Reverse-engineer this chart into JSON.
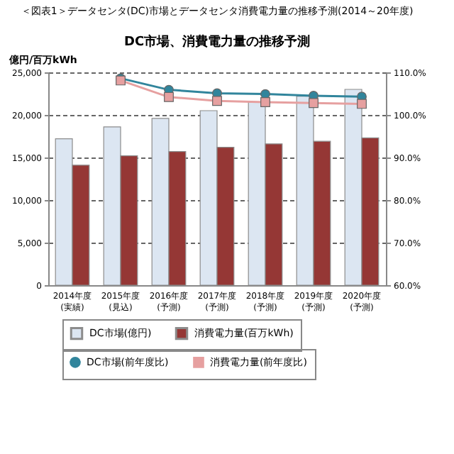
{
  "chart_data": {
    "type": "bar",
    "title": "＜図表1＞データセンタ(DC)市場とデータセンタ消費電力量の推移予測(2014～20年度)",
    "subtitle": "DC市場、消費電力量の推移予測",
    "ylabel": "億円/百万kWh",
    "categories": [
      "2014年度\n(実績)",
      "2015年度\n(見込)",
      "2016年度\n(予測)",
      "2017年度\n(予測)",
      "2018年度\n(予測)",
      "2019年度\n(予測)",
      "2020年度\n(予測)"
    ],
    "series": [
      {
        "name": "DC市場(億円)",
        "color": "#dce6f2",
        "values": [
          17200,
          18600,
          19600,
          20500,
          21500,
          22200,
          23000
        ]
      },
      {
        "name": "消費電力量(百万kWh)",
        "color": "#953735",
        "values": [
          14100,
          15200,
          15700,
          16200,
          16600,
          16900,
          17300
        ]
      },
      {
        "name": "DC市場(前年度比)",
        "type": "line",
        "axis": "y2",
        "marker": "circle",
        "color": "#31859c",
        "values": [
          null,
          108.6,
          105.9,
          105.1,
          104.9,
          104.5,
          104.3
        ]
      },
      {
        "name": "消費電力量(前年度比)",
        "type": "line",
        "axis": "y2",
        "marker": "square",
        "color": "#e6a0a0",
        "values": [
          null,
          108.1,
          104.2,
          103.3,
          103.0,
          102.8,
          102.6
        ]
      }
    ],
    "ylim": [
      0,
      25000
    ],
    "yticks": [
      0,
      {
        "value": 5000,
        "label": "5,000"
      },
      {
        "value": 10000,
        "label": "10,000"
      },
      {
        "value": 15000,
        "label": "15,000"
      },
      {
        "value": 20000,
        "label": "20,000"
      },
      {
        "value": 25000,
        "label": "25,000"
      }
    ],
    "y2lim": [
      60,
      110
    ],
    "y2ticks": [
      {
        "value": 60,
        "label": "60.0%"
      },
      {
        "value": 70,
        "label": "70.0%"
      },
      {
        "value": 80,
        "label": "80.0%"
      },
      {
        "value": 90,
        "label": "90.0%"
      },
      {
        "value": 100,
        "label": "100.0%"
      },
      {
        "value": 110,
        "label": "110.0%"
      }
    ],
    "grid": "y",
    "legend": "bottom"
  }
}
